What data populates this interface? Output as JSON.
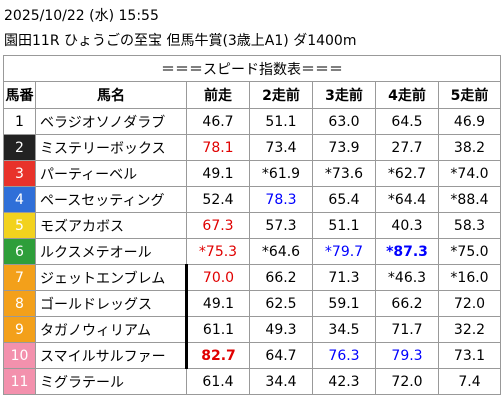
{
  "header": {
    "date": "2025/10/22 (水) 15:55",
    "race": "園田11R ひょうごの至宝 但馬牛賞(3歳上A1) ダ1400m"
  },
  "table": {
    "title": "＝＝＝スピード指数表＝＝＝",
    "columns": [
      "馬番",
      "馬名",
      "前走",
      "2走前",
      "3走前",
      "4走前",
      "5走前"
    ],
    "frame_colors": [
      [
        "#ffffff",
        "#000000"
      ],
      [
        "#222222",
        "#ffffff"
      ],
      [
        "#e8322a",
        "#ffffff"
      ],
      [
        "#2f6fd8",
        "#ffffff"
      ],
      [
        "#f2d21e",
        "#ffffff"
      ],
      [
        "#2e9e3a",
        "#ffffff"
      ],
      [
        "#f3a01a",
        "#ffffff"
      ],
      [
        "#f3a01a",
        "#ffffff"
      ],
      [
        "#f3a01a",
        "#ffffff"
      ],
      [
        "#f391ad",
        "#ffffff"
      ],
      [
        "#f391ad",
        "#ffffff"
      ]
    ],
    "rows": [
      [
        "1",
        "ベラジオソノダラブ",
        "46.7",
        "51.1",
        "63.0",
        "64.5",
        "46.9"
      ],
      [
        "2",
        "ミステリーボックス",
        "78.1",
        "73.4",
        "73.9",
        "27.7",
        "38.2"
      ],
      [
        "3",
        "パーティーベル",
        "49.1",
        "*61.9",
        "*73.6",
        "*62.7",
        "*74.0"
      ],
      [
        "4",
        "ペースセッティング",
        "52.4",
        "78.3",
        "65.4",
        "*64.4",
        "*88.4"
      ],
      [
        "5",
        "モズアカボス",
        "67.3",
        "57.3",
        "51.1",
        "40.3",
        "58.3"
      ],
      [
        "6",
        "ルクスメテオール",
        "*75.3",
        "*64.6",
        "*79.7",
        "*87.3",
        "*75.0"
      ],
      [
        "7",
        "ジェットエンブレム",
        "70.0",
        "66.2",
        "71.3",
        "*46.3",
        "*16.0"
      ],
      [
        "8",
        "ゴールドレッグス",
        "49.1",
        "62.5",
        "59.1",
        "66.2",
        "72.0"
      ],
      [
        "9",
        "タガノウィリアム",
        "61.1",
        "49.3",
        "34.5",
        "71.7",
        "32.2"
      ],
      [
        "10",
        "スマイルサルファー",
        "82.7",
        "64.7",
        "76.3",
        "79.3",
        "73.1"
      ],
      [
        "11",
        "ミグラテール",
        "61.4",
        "34.4",
        "42.3",
        "72.0",
        "7.4"
      ]
    ]
  }
}
